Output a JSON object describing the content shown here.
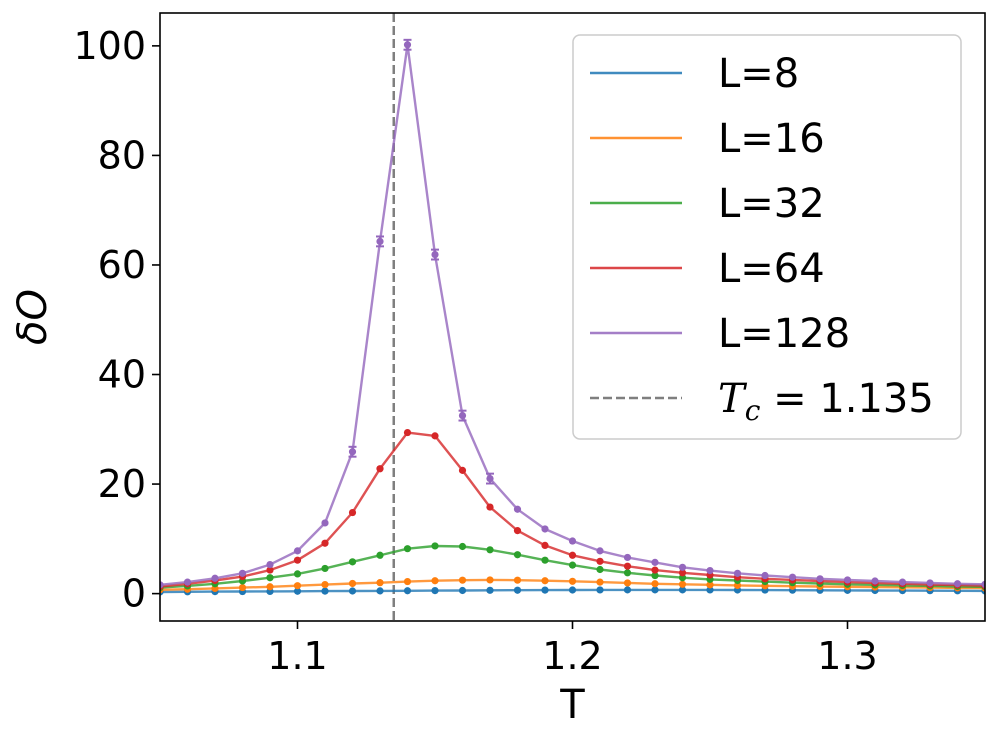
{
  "chart_data": {
    "type": "line",
    "xlabel": "T",
    "ylabel": "δO",
    "xlim": [
      1.05,
      1.35
    ],
    "ylim": [
      -5,
      106
    ],
    "xticks": [
      "1.1",
      "1.2",
      "1.3"
    ],
    "yticks": [
      "0",
      "20",
      "40",
      "60",
      "80",
      "100"
    ],
    "grid": false,
    "legend_position": "top-right",
    "x": [
      1.05,
      1.06,
      1.07,
      1.08,
      1.09,
      1.1,
      1.11,
      1.12,
      1.13,
      1.14,
      1.15,
      1.16,
      1.17,
      1.18,
      1.19,
      1.2,
      1.21,
      1.22,
      1.23,
      1.24,
      1.25,
      1.26,
      1.27,
      1.28,
      1.29,
      1.3,
      1.31,
      1.32,
      1.33,
      1.34,
      1.35
    ],
    "series": [
      {
        "name": "L=8",
        "color": "#1f77b4",
        "values": [
          0.3,
          0.33,
          0.36,
          0.38,
          0.4,
          0.43,
          0.46,
          0.48,
          0.5,
          0.52,
          0.55,
          0.57,
          0.6,
          0.62,
          0.64,
          0.66,
          0.67,
          0.68,
          0.68,
          0.68,
          0.67,
          0.66,
          0.65,
          0.63,
          0.61,
          0.59,
          0.57,
          0.55,
          0.53,
          0.51,
          0.49
        ]
      },
      {
        "name": "L=16",
        "color": "#ff7f0e",
        "values": [
          0.7,
          0.8,
          0.95,
          1.1,
          1.25,
          1.45,
          1.65,
          1.85,
          2.0,
          2.2,
          2.35,
          2.45,
          2.5,
          2.45,
          2.35,
          2.25,
          2.1,
          1.95,
          1.8,
          1.7,
          1.6,
          1.5,
          1.42,
          1.35,
          1.3,
          1.25,
          1.2,
          1.15,
          1.1,
          1.05,
          1.0
        ]
      },
      {
        "name": "L=32",
        "color": "#2ca02c",
        "values": [
          1.1,
          1.4,
          1.8,
          2.3,
          2.9,
          3.6,
          4.6,
          5.8,
          7.0,
          8.2,
          8.7,
          8.6,
          8.0,
          7.1,
          6.1,
          5.2,
          4.4,
          3.8,
          3.3,
          2.9,
          2.6,
          2.4,
          2.2,
          2.0,
          1.85,
          1.7,
          1.6,
          1.5,
          1.4,
          1.3,
          1.25
        ]
      },
      {
        "name": "L=64",
        "color": "#d62728",
        "values": [
          1.3,
          1.8,
          2.4,
          3.1,
          4.3,
          6.1,
          9.2,
          14.8,
          22.8,
          29.4,
          28.8,
          22.5,
          15.8,
          11.5,
          8.8,
          7.0,
          5.9,
          5.0,
          4.3,
          3.8,
          3.4,
          3.0,
          2.7,
          2.5,
          2.3,
          2.1,
          1.95,
          1.8,
          1.65,
          1.55,
          1.45
        ]
      },
      {
        "name": "L=128",
        "color": "#9467bd",
        "values": [
          1.6,
          2.1,
          2.8,
          3.7,
          5.3,
          7.8,
          12.9,
          25.9,
          64.3,
          100.2,
          61.9,
          32.5,
          21.0,
          15.4,
          11.8,
          9.6,
          7.8,
          6.6,
          5.7,
          4.8,
          4.2,
          3.7,
          3.3,
          3.0,
          2.7,
          2.5,
          2.3,
          2.1,
          1.95,
          1.8,
          1.7
        ]
      }
    ],
    "vline": {
      "x": 1.135,
      "label": "T_c = 1.135",
      "color": "#7f7f7f"
    }
  }
}
